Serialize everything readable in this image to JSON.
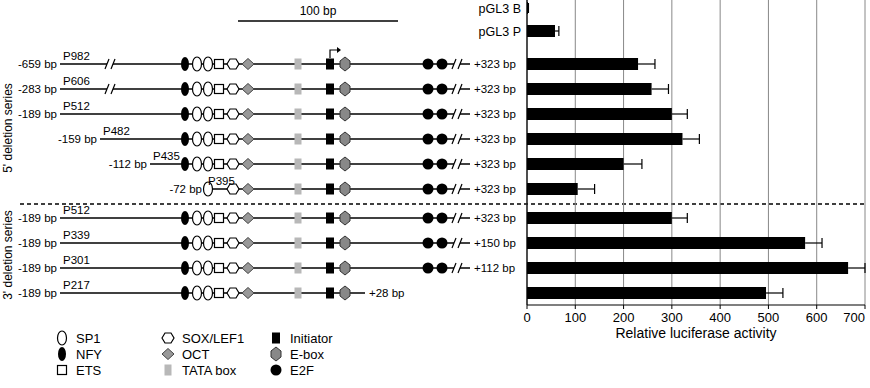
{
  "chart_data": {
    "type": "bar",
    "orientation": "horizontal",
    "categories": [
      "pGL3 B",
      "pGL3 P",
      "P982",
      "P606",
      "P512",
      "P482",
      "P435",
      "P395",
      "P512",
      "P339",
      "P301",
      "P217"
    ],
    "values": [
      2,
      58,
      230,
      258,
      300,
      322,
      200,
      105,
      300,
      576,
      665,
      495
    ],
    "errors": [
      1,
      8,
      35,
      35,
      32,
      35,
      38,
      35,
      32,
      35,
      35,
      35
    ],
    "color": "#000000",
    "x_label": "Relative luciferase activity",
    "xlim": [
      0,
      700
    ],
    "xticks": [
      0,
      100,
      200,
      300,
      400,
      500,
      600,
      700
    ],
    "grid": true
  },
  "diagram": {
    "scale_bar": "100 bp",
    "series_labels": [
      "5' deletion series",
      "3' deletion series"
    ],
    "legend": [
      "SP1",
      "NFY",
      "ETS",
      "SOX/LEF1",
      "OCT",
      "TATA box",
      "Initiator",
      "E-box",
      "E2F"
    ],
    "constructs": [
      null,
      null,
      {
        "start": "-659 bp",
        "end": "+323 bp",
        "elements": [
          "NFY",
          "SP1",
          "SP1",
          "ETS",
          "SOX/LEF1",
          "OCT",
          "TATA box",
          "Initiator",
          "E-box",
          "E2F",
          "E2F"
        ]
      },
      {
        "start": "-283 bp",
        "end": "+323 bp",
        "elements": [
          "NFY",
          "SP1",
          "SP1",
          "ETS",
          "SOX/LEF1",
          "OCT",
          "TATA box",
          "Initiator",
          "E-box",
          "E2F",
          "E2F"
        ]
      },
      {
        "start": "-189 bp",
        "end": "+323 bp",
        "elements": [
          "NFY",
          "SP1",
          "SP1",
          "ETS",
          "SOX/LEF1",
          "OCT",
          "TATA box",
          "Initiator",
          "E-box",
          "E2F",
          "E2F"
        ]
      },
      {
        "start": "-159 bp",
        "end": "+323 bp",
        "elements": [
          "NFY",
          "SP1",
          "SP1",
          "ETS",
          "SOX/LEF1",
          "OCT",
          "TATA box",
          "Initiator",
          "E-box",
          "E2F",
          "E2F"
        ]
      },
      {
        "start": "-112 bp",
        "end": "+323 bp",
        "elements": [
          "NFY",
          "SP1",
          "SP1",
          "ETS",
          "SOX/LEF1",
          "OCT",
          "TATA box",
          "Initiator",
          "E-box",
          "E2F",
          "E2F"
        ]
      },
      {
        "start": "-72 bp",
        "end": "+323 bp",
        "elements": [
          "SP1",
          "SOX/LEF1",
          "OCT",
          "TATA box",
          "Initiator",
          "E-box",
          "E2F",
          "E2F"
        ]
      },
      {
        "start": "-189 bp",
        "end": "+323 bp",
        "elements": [
          "NFY",
          "SP1",
          "SP1",
          "ETS",
          "SOX/LEF1",
          "OCT",
          "TATA box",
          "Initiator",
          "E-box",
          "E2F",
          "E2F"
        ]
      },
      {
        "start": "-189 bp",
        "end": "+150 bp",
        "elements": [
          "NFY",
          "SP1",
          "SP1",
          "ETS",
          "SOX/LEF1",
          "OCT",
          "TATA box",
          "Initiator",
          "E-box",
          "E2F",
          "E2F"
        ]
      },
      {
        "start": "-189 bp",
        "end": "+112 bp",
        "elements": [
          "NFY",
          "SP1",
          "SP1",
          "ETS",
          "SOX/LEF1",
          "OCT",
          "TATA box",
          "Initiator",
          "E-box",
          "E2F",
          "E2F"
        ]
      },
      {
        "start": "-189 bp",
        "end": "+28 bp",
        "elements": [
          "NFY",
          "SP1",
          "SP1",
          "ETS",
          "SOX/LEF1",
          "OCT",
          "TATA box",
          "Initiator",
          "E-box"
        ]
      }
    ]
  }
}
